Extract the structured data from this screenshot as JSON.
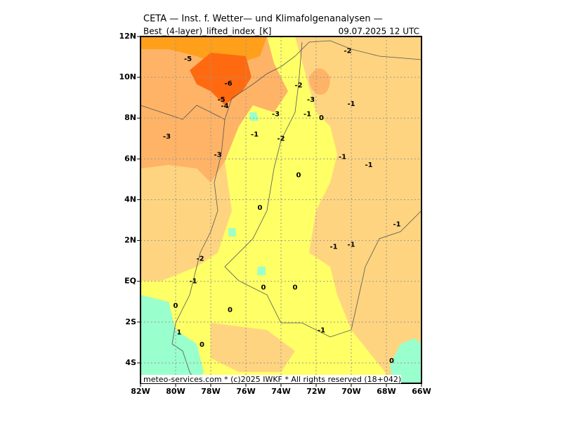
{
  "map": {
    "title": "CETA — Inst. f. Wetter— und Klimafolgenanalysen —",
    "field": "Best_(4-layer)_lifted_index_[K]",
    "valid": "09.07.2025 12 UTC",
    "footer": "meteo-services.com * (c)2025 IWKF * All rights reserved (18+042)",
    "xlim": [
      -82,
      -66
    ],
    "ylim": [
      -5,
      12
    ],
    "xticks": [
      {
        "value": -82,
        "label": "82W"
      },
      {
        "value": -80,
        "label": "80W"
      },
      {
        "value": -78,
        "label": "78W"
      },
      {
        "value": -76,
        "label": "76W"
      },
      {
        "value": -74,
        "label": "74W"
      },
      {
        "value": -72,
        "label": "72W"
      },
      {
        "value": -70,
        "label": "70W"
      },
      {
        "value": -68,
        "label": "68W"
      },
      {
        "value": -66,
        "label": "66W"
      }
    ],
    "yticks": [
      {
        "value": 12,
        "label": "12N"
      },
      {
        "value": 10,
        "label": "10N"
      },
      {
        "value": 8,
        "label": "8N"
      },
      {
        "value": 6,
        "label": "6N"
      },
      {
        "value": 4,
        "label": "4N"
      },
      {
        "value": 2,
        "label": "2N"
      },
      {
        "value": 0,
        "label": "EQ"
      },
      {
        "value": -2,
        "label": "2S"
      },
      {
        "value": -4,
        "label": "4S"
      }
    ],
    "grid": true,
    "contour_labels": [
      {
        "value": -5,
        "lon": -79.3,
        "lat": 10.9
      },
      {
        "value": -6,
        "lon": -77.0,
        "lat": 9.7
      },
      {
        "value": -5,
        "lon": -77.4,
        "lat": 8.9
      },
      {
        "value": -4,
        "lon": -77.2,
        "lat": 8.6
      },
      {
        "value": -3,
        "lon": -80.5,
        "lat": 7.1
      },
      {
        "value": -3,
        "lon": -77.6,
        "lat": 6.2
      },
      {
        "value": -3,
        "lon": -74.3,
        "lat": 8.2
      },
      {
        "value": -1,
        "lon": -75.5,
        "lat": 7.2
      },
      {
        "value": -2,
        "lon": -74.0,
        "lat": 7.0
      },
      {
        "value": -2,
        "lon": -70.2,
        "lat": 11.3
      },
      {
        "value": -2,
        "lon": -73.0,
        "lat": 9.6
      },
      {
        "value": -3,
        "lon": -72.3,
        "lat": 8.9
      },
      {
        "value": -1,
        "lon": -72.5,
        "lat": 8.2
      },
      {
        "value": 0,
        "lon": -71.7,
        "lat": 8.0
      },
      {
        "value": -1,
        "lon": -70.0,
        "lat": 8.7
      },
      {
        "value": -1,
        "lon": -70.5,
        "lat": 6.1
      },
      {
        "value": -1,
        "lon": -69.0,
        "lat": 5.7
      },
      {
        "value": 0,
        "lon": -73.0,
        "lat": 5.2
      },
      {
        "value": 0,
        "lon": -75.2,
        "lat": 3.6
      },
      {
        "value": -1,
        "lon": -67.4,
        "lat": 2.8
      },
      {
        "value": -1,
        "lon": -71.0,
        "lat": 1.7
      },
      {
        "value": -1,
        "lon": -70.0,
        "lat": 1.8
      },
      {
        "value": -2,
        "lon": -78.6,
        "lat": 1.1
      },
      {
        "value": -1,
        "lon": -79.0,
        "lat": 0.0
      },
      {
        "value": 0,
        "lon": -75.0,
        "lat": -0.3
      },
      {
        "value": 0,
        "lon": -73.2,
        "lat": -0.3
      },
      {
        "value": 0,
        "lon": -80.0,
        "lat": -1.2
      },
      {
        "value": 0,
        "lon": -76.9,
        "lat": -1.4
      },
      {
        "value": -1,
        "lon": -71.7,
        "lat": -2.4
      },
      {
        "value": 1,
        "lon": -79.8,
        "lat": -2.5
      },
      {
        "value": 0,
        "lon": -78.5,
        "lat": -3.1
      },
      {
        "value": 0,
        "lon": -67.7,
        "lat": -3.9
      }
    ]
  }
}
